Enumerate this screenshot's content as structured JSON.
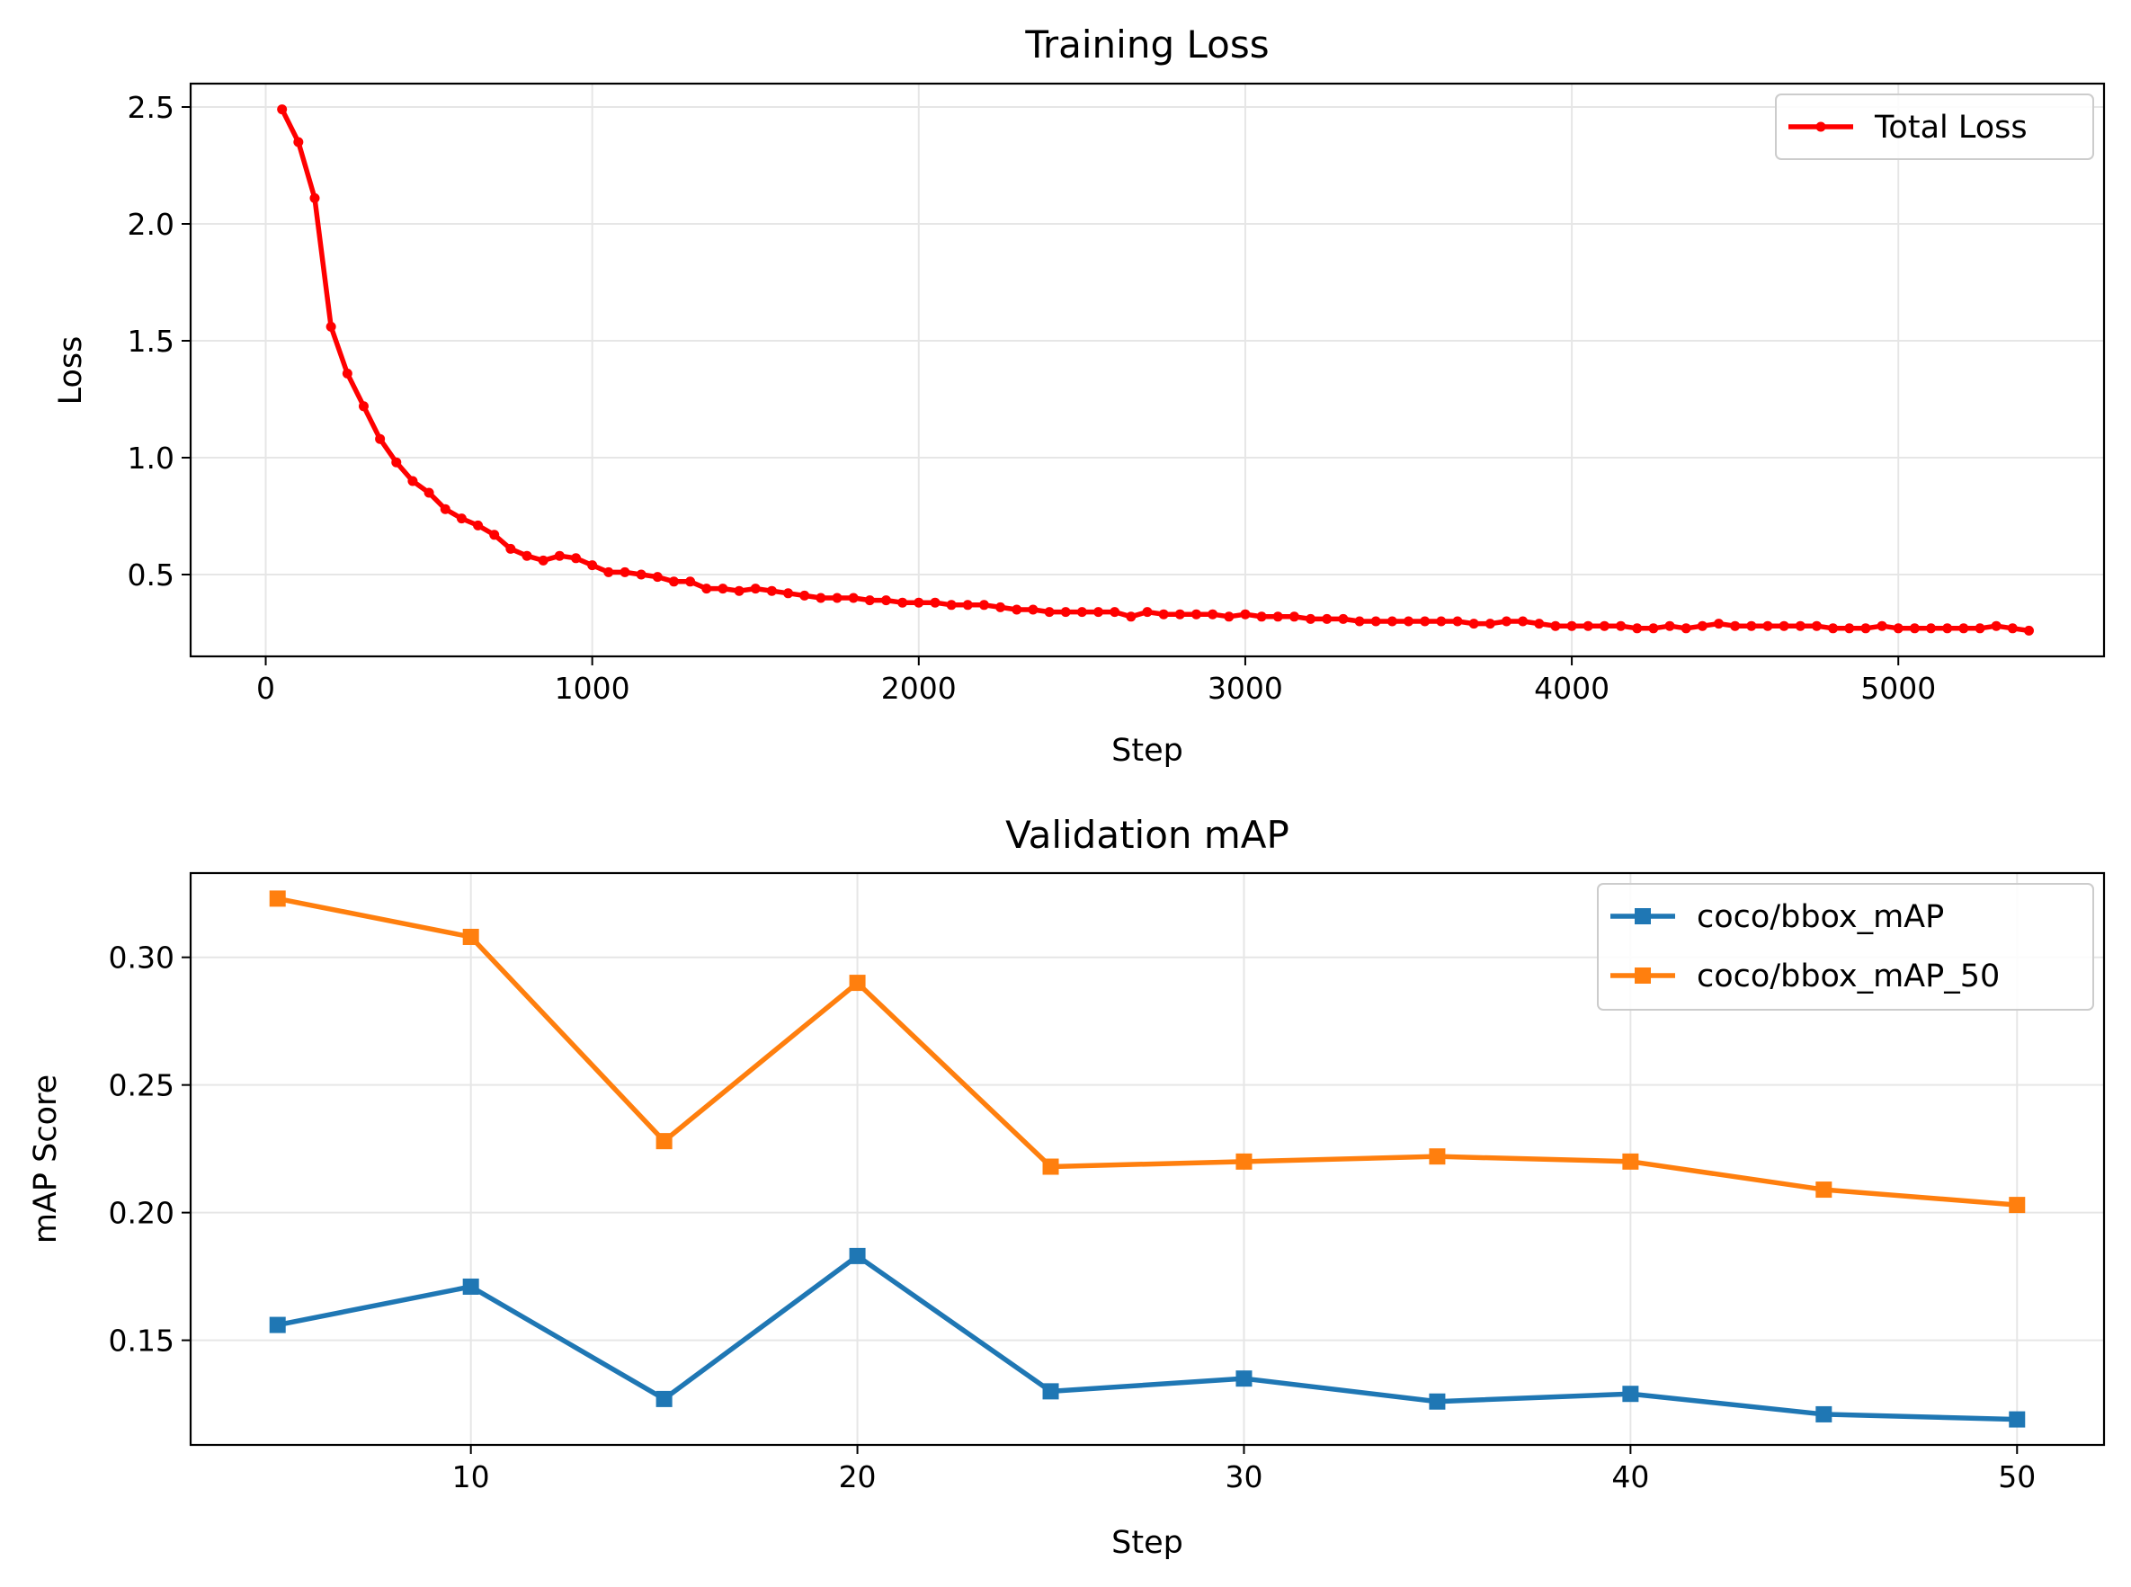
{
  "chart_data": [
    {
      "type": "line",
      "title": "Training Loss",
      "xlabel": "Step",
      "ylabel": "Loss",
      "xlim": [
        -230,
        5630
      ],
      "ylim": [
        0.15,
        2.6
      ],
      "xticks": [
        0,
        1000,
        2000,
        3000,
        4000,
        5000
      ],
      "xtick_labels": [
        "0",
        "1000",
        "2000",
        "3000",
        "4000",
        "5000"
      ],
      "yticks": [
        0.5,
        1.0,
        1.5,
        2.0,
        2.5
      ],
      "ytick_labels": [
        "0.5",
        "1.0",
        "1.5",
        "2.0",
        "2.5"
      ],
      "grid": true,
      "legend_position": "top-right",
      "series": [
        {
          "name": "Total Loss",
          "color": "#ff0000",
          "marker": "circle",
          "x": [
            50,
            100,
            150,
            200,
            250,
            300,
            350,
            400,
            450,
            500,
            550,
            600,
            650,
            700,
            750,
            800,
            850,
            900,
            950,
            1000,
            1050,
            1100,
            1150,
            1200,
            1250,
            1300,
            1350,
            1400,
            1450,
            1500,
            1550,
            1600,
            1650,
            1700,
            1750,
            1800,
            1850,
            1900,
            1950,
            2000,
            2050,
            2100,
            2150,
            2200,
            2250,
            2300,
            2350,
            2400,
            2450,
            2500,
            2550,
            2600,
            2650,
            2700,
            2750,
            2800,
            2850,
            2900,
            2950,
            3000,
            3050,
            3100,
            3150,
            3200,
            3250,
            3300,
            3350,
            3400,
            3450,
            3500,
            3550,
            3600,
            3650,
            3700,
            3750,
            3800,
            3850,
            3900,
            3950,
            4000,
            4050,
            4100,
            4150,
            4200,
            4250,
            4300,
            4350,
            4400,
            4450,
            4500,
            4550,
            4600,
            4650,
            4700,
            4750,
            4800,
            4850,
            4900,
            4950,
            5000,
            5050,
            5100,
            5150,
            5200,
            5250,
            5300,
            5350,
            5400
          ],
          "values": [
            2.49,
            2.35,
            2.11,
            1.56,
            1.36,
            1.22,
            1.08,
            0.98,
            0.9,
            0.85,
            0.78,
            0.74,
            0.71,
            0.67,
            0.61,
            0.58,
            0.56,
            0.58,
            0.57,
            0.54,
            0.51,
            0.51,
            0.5,
            0.49,
            0.47,
            0.47,
            0.44,
            0.44,
            0.43,
            0.44,
            0.43,
            0.42,
            0.41,
            0.4,
            0.4,
            0.4,
            0.39,
            0.39,
            0.38,
            0.38,
            0.38,
            0.37,
            0.37,
            0.37,
            0.36,
            0.35,
            0.35,
            0.34,
            0.34,
            0.34,
            0.34,
            0.34,
            0.32,
            0.34,
            0.33,
            0.33,
            0.33,
            0.33,
            0.32,
            0.33,
            0.32,
            0.32,
            0.32,
            0.31,
            0.31,
            0.31,
            0.3,
            0.3,
            0.3,
            0.3,
            0.3,
            0.3,
            0.3,
            0.29,
            0.29,
            0.3,
            0.3,
            0.29,
            0.28,
            0.28,
            0.28,
            0.28,
            0.28,
            0.27,
            0.27,
            0.28,
            0.27,
            0.28,
            0.29,
            0.28,
            0.28,
            0.28,
            0.28,
            0.28,
            0.28,
            0.27,
            0.27,
            0.27,
            0.28,
            0.27,
            0.27,
            0.27,
            0.27,
            0.27,
            0.27,
            0.28,
            0.27,
            0.26
          ]
        }
      ]
    },
    {
      "type": "line",
      "title": "Validation mAP",
      "xlabel": "Step",
      "ylabel": "mAP Score",
      "xlim": [
        2.75,
        52.25
      ],
      "ylim": [
        0.109,
        0.333
      ],
      "xticks": [
        10,
        20,
        30,
        40,
        50
      ],
      "xtick_labels": [
        "10",
        "20",
        "30",
        "40",
        "50"
      ],
      "yticks": [
        0.15,
        0.2,
        0.25,
        0.3
      ],
      "ytick_labels": [
        "0.15",
        "0.20",
        "0.25",
        "0.30"
      ],
      "grid": true,
      "legend_position": "top-right",
      "categories": [
        5,
        10,
        15,
        20,
        25,
        30,
        35,
        40,
        45,
        50
      ],
      "series": [
        {
          "name": "coco/bbox_mAP",
          "color": "#1f77b4",
          "marker": "square",
          "values": [
            0.156,
            0.171,
            0.127,
            0.183,
            0.13,
            0.135,
            0.126,
            0.129,
            0.121,
            0.119
          ]
        },
        {
          "name": "coco/bbox_mAP_50",
          "color": "#ff7f0e",
          "marker": "square",
          "values": [
            0.323,
            0.308,
            0.228,
            0.29,
            0.218,
            0.22,
            0.222,
            0.22,
            0.209,
            0.203
          ]
        }
      ]
    }
  ]
}
